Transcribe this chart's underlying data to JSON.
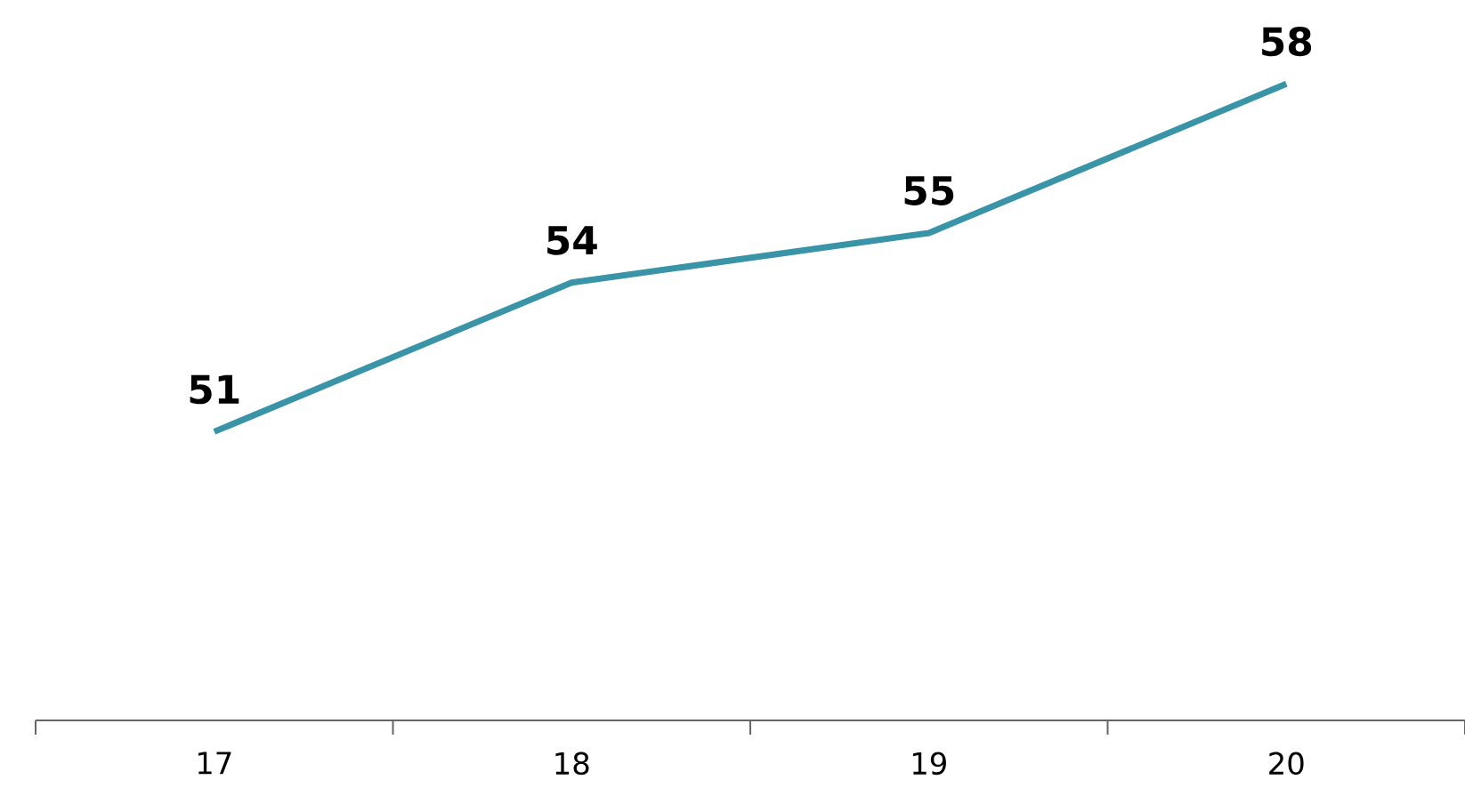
{
  "chart_data": {
    "type": "line",
    "categories": [
      "17",
      "18",
      "19",
      "20"
    ],
    "series": [
      {
        "color": "#3a94a8",
        "values": [
          51,
          54,
          55,
          58
        ]
      }
    ],
    "data_labels": true,
    "grid": false,
    "marker": "none",
    "line_style": "solid"
  }
}
